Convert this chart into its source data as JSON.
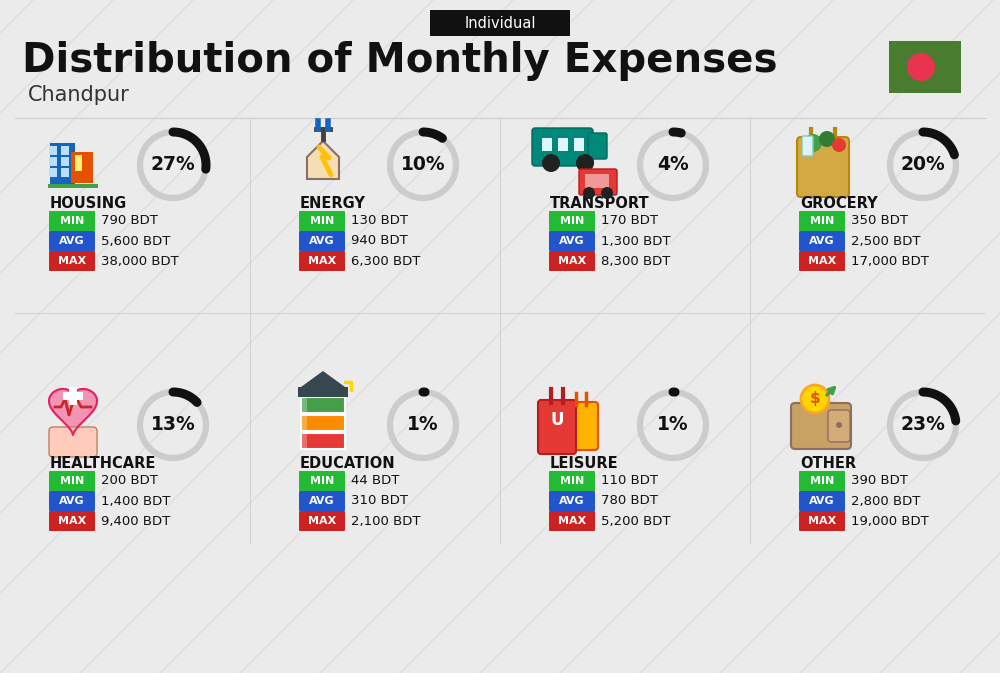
{
  "title": "Distribution of Monthly Expenses",
  "subtitle": "Individual",
  "city": "Chandpur",
  "bg_color": "#ebebeb",
  "categories": [
    {
      "name": "HOUSING",
      "pct": 27,
      "min": "790 BDT",
      "avg": "5,600 BDT",
      "max": "38,000 BDT",
      "icon": "housing",
      "row": 0,
      "col": 0
    },
    {
      "name": "ENERGY",
      "pct": 10,
      "min": "130 BDT",
      "avg": "940 BDT",
      "max": "6,300 BDT",
      "icon": "energy",
      "row": 0,
      "col": 1
    },
    {
      "name": "TRANSPORT",
      "pct": 4,
      "min": "170 BDT",
      "avg": "1,300 BDT",
      "max": "8,300 BDT",
      "icon": "transport",
      "row": 0,
      "col": 2
    },
    {
      "name": "GROCERY",
      "pct": 20,
      "min": "350 BDT",
      "avg": "2,500 BDT",
      "max": "17,000 BDT",
      "icon": "grocery",
      "row": 0,
      "col": 3
    },
    {
      "name": "HEALTHCARE",
      "pct": 13,
      "min": "200 BDT",
      "avg": "1,400 BDT",
      "max": "9,400 BDT",
      "icon": "healthcare",
      "row": 1,
      "col": 0
    },
    {
      "name": "EDUCATION",
      "pct": 1,
      "min": "44 BDT",
      "avg": "310 BDT",
      "max": "2,100 BDT",
      "icon": "education",
      "row": 1,
      "col": 1
    },
    {
      "name": "LEISURE",
      "pct": 1,
      "min": "110 BDT",
      "avg": "780 BDT",
      "max": "5,200 BDT",
      "icon": "leisure",
      "row": 1,
      "col": 2
    },
    {
      "name": "OTHER",
      "pct": 23,
      "min": "390 BDT",
      "avg": "2,800 BDT",
      "max": "19,000 BDT",
      "icon": "other",
      "row": 1,
      "col": 3
    }
  ],
  "min_color": "#22bb33",
  "avg_color": "#2255cc",
  "max_color": "#cc2222",
  "label_text_color": "#ffffff",
  "value_text_color": "#111111",
  "title_color": "#111111",
  "subtitle_bg": "#111111",
  "subtitle_text": "#ffffff",
  "arc_color_filled": "#111111",
  "arc_color_empty": "#cccccc",
  "flag_green": "#4a7c2f",
  "flag_red": "#e8344e"
}
